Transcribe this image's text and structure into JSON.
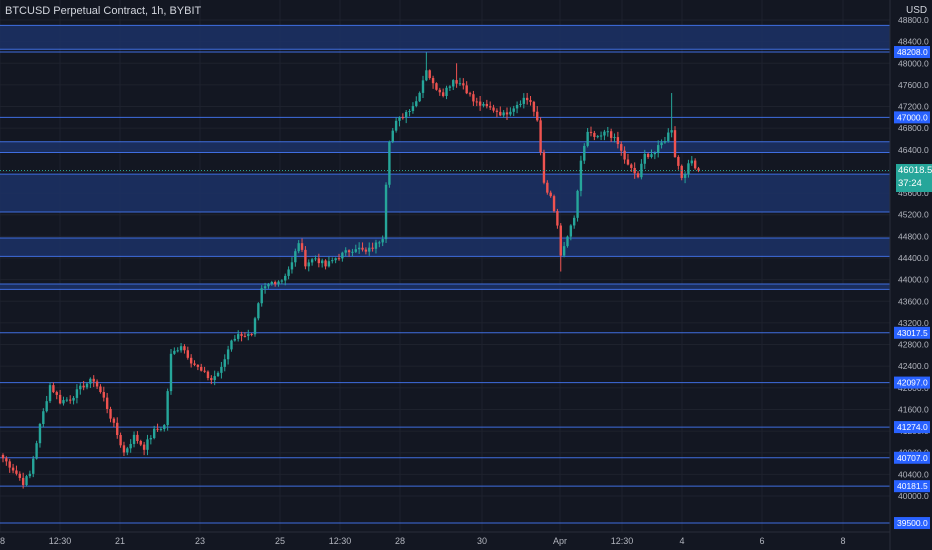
{
  "header": {
    "title": "BTCUSD Perpetual Contract, 1h, BYBIT",
    "currency": "USD"
  },
  "current_price": {
    "value": "46018.5",
    "countdown": "37:24",
    "color": "#26a69a"
  },
  "colors": {
    "background": "#131722",
    "up": "#26a69a",
    "down": "#ef5350",
    "zone_fill": "#1c3166",
    "level_line": "#3f6ee0",
    "level_label_bg": "#2962ff",
    "axis_text": "#b2b5be"
  },
  "chart_data": {
    "type": "candlestick",
    "title": "BTCUSD Perpetual Contract, 1h, BYBIT",
    "ylim": [
      39500,
      48800
    ],
    "y_ticks": [
      40000,
      40400,
      40800,
      41200,
      41600,
      42000,
      42400,
      42800,
      43200,
      43600,
      44000,
      44400,
      44800,
      45200,
      45600,
      46000,
      46400,
      46800,
      47200,
      47600,
      48000,
      48400,
      48800
    ],
    "y_tick_labels": [
      "40000.0",
      "40400.0",
      "40800.0",
      "41200.0",
      "41600.0",
      "42000.0",
      "42400.0",
      "42800.0",
      "43200.0",
      "43600.0",
      "44000.0",
      "44400.0",
      "44800.0",
      "45200.0",
      "45600.0",
      "46000.0",
      "46400.0",
      "46800.0",
      "47200.0",
      "47600.0",
      "48000.0",
      "48400.0",
      "48800.0"
    ],
    "x_ticks": [
      "8",
      "12:30",
      "21",
      "23",
      "25",
      "12:30",
      "28",
      "30",
      "Apr",
      "12:30",
      "4",
      "6",
      "8"
    ],
    "horizontal_levels": [
      {
        "value": 48208.0,
        "label": "48208.0"
      },
      {
        "value": 47000.0,
        "label": "47000.0"
      },
      {
        "value": 43017.5,
        "label": "43017.5"
      },
      {
        "value": 42097.0,
        "label": "42097.0"
      },
      {
        "value": 41274.0,
        "label": "41274.0"
      },
      {
        "value": 40707.0,
        "label": "40707.0"
      },
      {
        "value": 40181.5,
        "label": "40181.5"
      },
      {
        "value": 39500.0,
        "label": "39500.0"
      }
    ],
    "zones": [
      {
        "top": 48700,
        "bottom": 48260
      },
      {
        "top": 46550,
        "bottom": 46350
      },
      {
        "top": 45950,
        "bottom": 45250
      },
      {
        "top": 44770,
        "bottom": 44430
      },
      {
        "top": 43920,
        "bottom": 43820
      }
    ],
    "price_path": [
      {
        "t": 0,
        "p": 40700
      },
      {
        "t": 3,
        "p": 40500
      },
      {
        "t": 6,
        "p": 40250
      },
      {
        "t": 8,
        "p": 40400
      },
      {
        "t": 11,
        "p": 41300
      },
      {
        "t": 14,
        "p": 42050
      },
      {
        "t": 17,
        "p": 41750
      },
      {
        "t": 20,
        "p": 41800
      },
      {
        "t": 24,
        "p": 42050
      },
      {
        "t": 27,
        "p": 42150
      },
      {
        "t": 30,
        "p": 41800
      },
      {
        "t": 33,
        "p": 41300
      },
      {
        "t": 36,
        "p": 40800
      },
      {
        "t": 39,
        "p": 41100
      },
      {
        "t": 42,
        "p": 40900
      },
      {
        "t": 45,
        "p": 41200
      },
      {
        "t": 48,
        "p": 41300
      },
      {
        "t": 50,
        "p": 42600
      },
      {
        "t": 53,
        "p": 42800
      },
      {
        "t": 56,
        "p": 42500
      },
      {
        "t": 59,
        "p": 42300
      },
      {
        "t": 62,
        "p": 42150
      },
      {
        "t": 65,
        "p": 42350
      },
      {
        "t": 68,
        "p": 42900
      },
      {
        "t": 71,
        "p": 43000
      },
      {
        "t": 74,
        "p": 42950
      },
      {
        "t": 77,
        "p": 43800
      },
      {
        "t": 80,
        "p": 43950
      },
      {
        "t": 83,
        "p": 44000
      },
      {
        "t": 86,
        "p": 44300
      },
      {
        "t": 88,
        "p": 44700
      },
      {
        "t": 90,
        "p": 44300
      },
      {
        "t": 93,
        "p": 44400
      },
      {
        "t": 96,
        "p": 44250
      },
      {
        "t": 99,
        "p": 44400
      },
      {
        "t": 102,
        "p": 44500
      },
      {
        "t": 105,
        "p": 44600
      },
      {
        "t": 108,
        "p": 44500
      },
      {
        "t": 111,
        "p": 44650
      },
      {
        "t": 113,
        "p": 44800
      },
      {
        "t": 114,
        "p": 45800
      },
      {
        "t": 115,
        "p": 46600
      },
      {
        "t": 117,
        "p": 46900
      },
      {
        "t": 120,
        "p": 47100
      },
      {
        "t": 123,
        "p": 47300
      },
      {
        "t": 126,
        "p": 47900
      },
      {
        "t": 128,
        "p": 47600
      },
      {
        "t": 131,
        "p": 47450
      },
      {
        "t": 134,
        "p": 47700
      },
      {
        "t": 137,
        "p": 47600
      },
      {
        "t": 140,
        "p": 47300
      },
      {
        "t": 143,
        "p": 47200
      },
      {
        "t": 146,
        "p": 47150
      },
      {
        "t": 149,
        "p": 47050
      },
      {
        "t": 152,
        "p": 47200
      },
      {
        "t": 155,
        "p": 47350
      },
      {
        "t": 157,
        "p": 47300
      },
      {
        "t": 159,
        "p": 46900
      },
      {
        "t": 161,
        "p": 45800
      },
      {
        "t": 163,
        "p": 45500
      },
      {
        "t": 165,
        "p": 45000
      },
      {
        "t": 166,
        "p": 44400
      },
      {
        "t": 168,
        "p": 44800
      },
      {
        "t": 170,
        "p": 45100
      },
      {
        "t": 172,
        "p": 46200
      },
      {
        "t": 174,
        "p": 46700
      },
      {
        "t": 177,
        "p": 46600
      },
      {
        "t": 180,
        "p": 46750
      },
      {
        "t": 183,
        "p": 46500
      },
      {
        "t": 186,
        "p": 46100
      },
      {
        "t": 189,
        "p": 45900
      },
      {
        "t": 191,
        "p": 46300
      },
      {
        "t": 194,
        "p": 46350
      },
      {
        "t": 197,
        "p": 46600
      },
      {
        "t": 199,
        "p": 46800
      },
      {
        "t": 200,
        "p": 46300
      },
      {
        "t": 202,
        "p": 45900
      },
      {
        "t": 205,
        "p": 46200
      },
      {
        "t": 207,
        "p": 46018.5
      }
    ],
    "spikes": [
      {
        "t": 126,
        "hi": 48200
      },
      {
        "t": 135,
        "hi": 48000
      },
      {
        "t": 166,
        "lo": 44150
      },
      {
        "t": 199,
        "hi": 47450
      }
    ],
    "grid": true
  }
}
